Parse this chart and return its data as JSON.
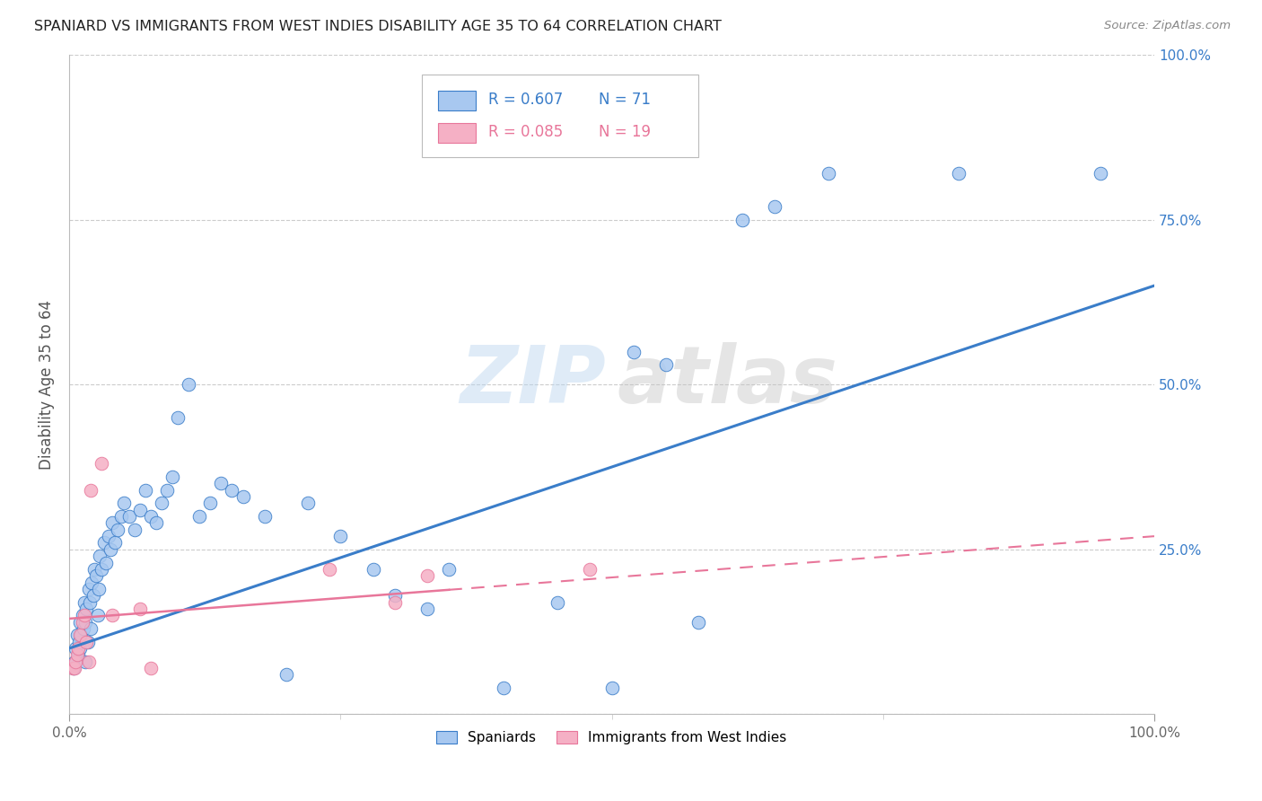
{
  "title": "SPANIARD VS IMMIGRANTS FROM WEST INDIES DISABILITY AGE 35 TO 64 CORRELATION CHART",
  "source": "Source: ZipAtlas.com",
  "ylabel": "Disability Age 35 to 64",
  "xlim": [
    0.0,
    1.0
  ],
  "ylim": [
    0.0,
    1.0
  ],
  "legend_label1": "Spaniards",
  "legend_label2": "Immigrants from West Indies",
  "r1": 0.607,
  "n1": 71,
  "r2": 0.085,
  "n2": 19,
  "spaniards_x": [
    0.004,
    0.005,
    0.006,
    0.007,
    0.008,
    0.009,
    0.01,
    0.01,
    0.011,
    0.012,
    0.013,
    0.014,
    0.015,
    0.015,
    0.016,
    0.017,
    0.018,
    0.019,
    0.02,
    0.021,
    0.022,
    0.023,
    0.025,
    0.026,
    0.027,
    0.028,
    0.03,
    0.032,
    0.034,
    0.036,
    0.038,
    0.04,
    0.042,
    0.045,
    0.048,
    0.05,
    0.055,
    0.06,
    0.065,
    0.07,
    0.075,
    0.08,
    0.085,
    0.09,
    0.095,
    0.1,
    0.11,
    0.12,
    0.13,
    0.14,
    0.15,
    0.16,
    0.18,
    0.2,
    0.22,
    0.25,
    0.28,
    0.3,
    0.33,
    0.35,
    0.4,
    0.45,
    0.5,
    0.52,
    0.55,
    0.58,
    0.62,
    0.65,
    0.7,
    0.82,
    0.95
  ],
  "spaniards_y": [
    0.07,
    0.08,
    0.1,
    0.12,
    0.09,
    0.11,
    0.1,
    0.14,
    0.12,
    0.15,
    0.13,
    0.17,
    0.08,
    0.14,
    0.16,
    0.11,
    0.19,
    0.17,
    0.13,
    0.2,
    0.18,
    0.22,
    0.21,
    0.15,
    0.19,
    0.24,
    0.22,
    0.26,
    0.23,
    0.27,
    0.25,
    0.29,
    0.26,
    0.28,
    0.3,
    0.32,
    0.3,
    0.28,
    0.31,
    0.34,
    0.3,
    0.29,
    0.32,
    0.34,
    0.36,
    0.45,
    0.5,
    0.3,
    0.32,
    0.35,
    0.34,
    0.33,
    0.3,
    0.06,
    0.32,
    0.27,
    0.22,
    0.18,
    0.16,
    0.22,
    0.04,
    0.17,
    0.04,
    0.55,
    0.53,
    0.14,
    0.75,
    0.77,
    0.82,
    0.82,
    0.82
  ],
  "westindies_x": [
    0.003,
    0.005,
    0.006,
    0.007,
    0.008,
    0.01,
    0.012,
    0.014,
    0.016,
    0.018,
    0.02,
    0.03,
    0.04,
    0.065,
    0.075,
    0.24,
    0.3,
    0.33,
    0.48
  ],
  "westindies_y": [
    0.07,
    0.07,
    0.08,
    0.09,
    0.1,
    0.12,
    0.14,
    0.15,
    0.11,
    0.08,
    0.34,
    0.38,
    0.15,
    0.16,
    0.07,
    0.22,
    0.17,
    0.21,
    0.22
  ],
  "color_spaniards": "#a8c8f0",
  "color_westindies": "#f5b0c5",
  "color_line_spaniards": "#3a7dc9",
  "color_line_westindies": "#e8769a",
  "background_color": "#ffffff",
  "grid_color": "#cccccc",
  "ytick_right": [
    0.25,
    0.5,
    0.75,
    1.0
  ],
  "ytick_right_labels": [
    "25.0%",
    "50.0%",
    "75.0%",
    "100.0%"
  ]
}
